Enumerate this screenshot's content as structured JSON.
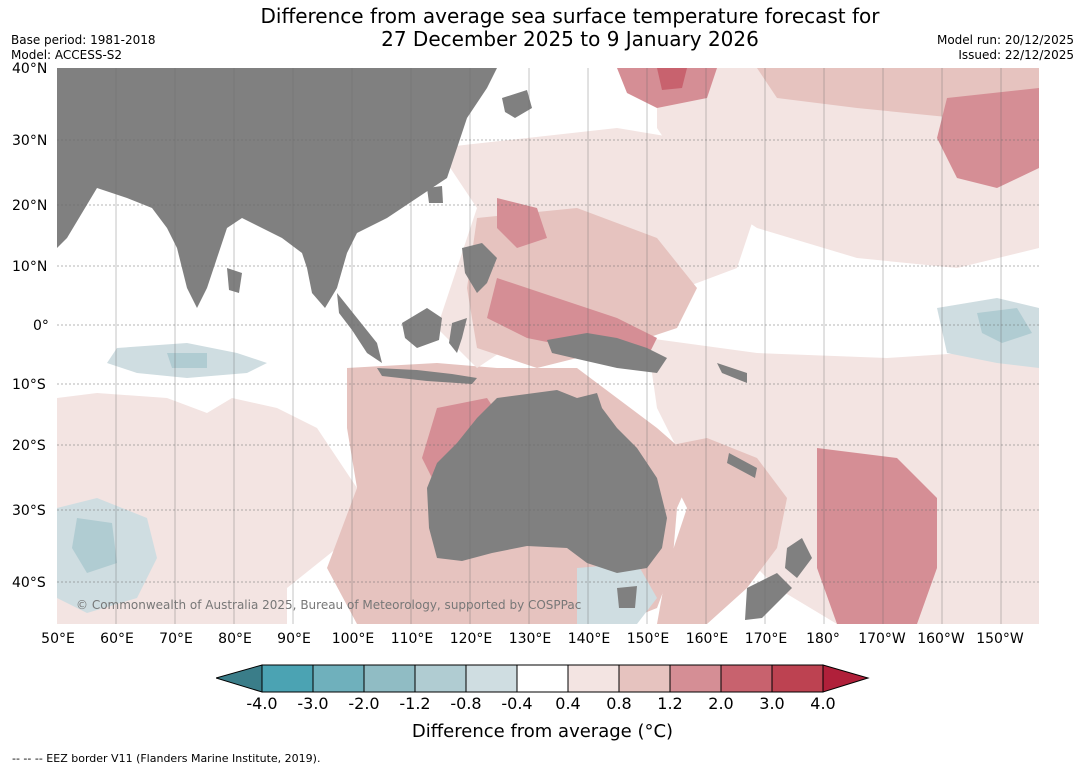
{
  "header": {
    "title_line1": "Difference from average sea surface temperature forecast for",
    "title_line2": "27 December 2025 to 9 January 2026",
    "base_period": "Base period: 1981-2018",
    "model": "Model: ACCESS-S2",
    "model_run": "Model run: 20/12/2025",
    "issued": "Issued: 22/12/2025"
  },
  "axes": {
    "lat_labels": [
      "40°N",
      "30°N",
      "20°N",
      "10°N",
      "0°",
      "10°S",
      "20°S",
      "30°S",
      "40°S"
    ],
    "lon_labels": [
      "50°E",
      "60°E",
      "70°E",
      "80°E",
      "90°E",
      "100°E",
      "110°E",
      "120°E",
      "130°E",
      "140°E",
      "150°E",
      "160°E",
      "170°E",
      "180°",
      "170°W",
      "160°W",
      "150°W"
    ]
  },
  "map": {
    "credit": "© Commonwealth of Australia 2025, Bureau of Meteorology, supported by COSPPac",
    "land_color": "#808080",
    "ocean_color": "#ffffff"
  },
  "colorbar": {
    "ticks": [
      "-4.0",
      "-3.0",
      "-2.0",
      "-1.2",
      "-0.8",
      "-0.4",
      "0.4",
      "0.8",
      "1.2",
      "2.0",
      "3.0",
      "4.0"
    ],
    "colors": [
      "#3a7d89",
      "#4ba3b3",
      "#6fb0bc",
      "#90bcc4",
      "#b0ccd2",
      "#cfdde1",
      "#ffffff",
      "#f3e4e2",
      "#e6c3bf",
      "#d58e95",
      "#c8626e",
      "#bd4251",
      "#b0203a"
    ],
    "label": "Difference from average (°C)"
  },
  "footnote": "--  --  -- EEZ border V11 (Flanders Marine Institute, 2019)."
}
